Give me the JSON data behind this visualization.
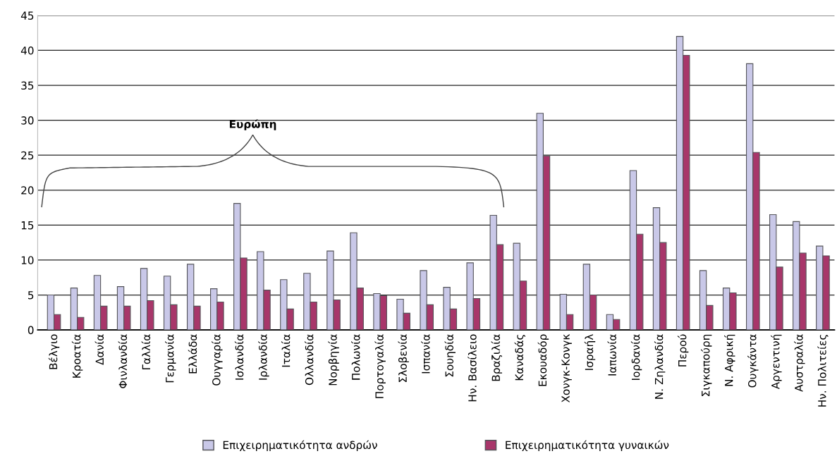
{
  "chart_data": {
    "type": "bar",
    "categories": [
      "Βέλγιο",
      "Κροατία",
      "Δανία",
      "Φινλανδία",
      "Γαλλία",
      "Γερμανία",
      "Ελλάδα",
      "Ουγγαρία",
      "Ισλανδία",
      "Ιρλανδία",
      "Ιταλία",
      "Ολλανδία",
      "Νορβηγία",
      "Πολωνία",
      "Πορτογαλία",
      "Σλοβενία",
      "Ισπανία",
      "Σουηδία",
      "Ην. Βασίλειο",
      "Βραζιλία",
      "Καναδάς",
      "Εκουαδόρ",
      "Χονγκ-Κονγκ",
      "Ισραήλ",
      "Ιαπωνία",
      "Ιορδανία",
      "Ν. Ζηλανδία",
      "Περού",
      "Σιγκαπούρη",
      "Ν. Αφρική",
      "Ουγκάντα",
      "Αργεντινή",
      "Αυστραλία",
      "Ην. Πολιτείες"
    ],
    "series": [
      {
        "name": "Επιχειρηματικότητα ανδρών",
        "color": "#c9c8e8",
        "values": [
          5.0,
          6.0,
          7.8,
          6.2,
          8.8,
          7.7,
          9.4,
          5.9,
          18.1,
          11.2,
          7.2,
          8.1,
          11.3,
          13.9,
          5.2,
          4.4,
          8.5,
          6.1,
          9.6,
          16.4,
          12.4,
          31.0,
          5.1,
          9.4,
          2.2,
          22.8,
          17.5,
          42.0,
          8.5,
          6.0,
          38.1,
          16.5,
          15.5,
          12.0
        ]
      },
      {
        "name": "Επιχειρηματικότητα γυναικών",
        "color": "#a8366a",
        "values": [
          2.2,
          1.8,
          3.4,
          3.4,
          4.2,
          3.6,
          3.4,
          4.0,
          10.3,
          5.7,
          3.0,
          4.0,
          4.3,
          6.0,
          4.9,
          2.4,
          3.6,
          3.0,
          4.5,
          12.2,
          7.0,
          24.9,
          2.2,
          5.0,
          1.5,
          13.7,
          12.5,
          39.3,
          3.5,
          5.3,
          25.4,
          9.0,
          11.0,
          10.6
        ]
      }
    ],
    "ylim": [
      0,
      45
    ],
    "yticks": [
      0,
      5,
      10,
      15,
      20,
      25,
      30,
      35,
      40,
      45
    ],
    "grid": "y",
    "legend": "bottom",
    "annotations": [
      "Ευρώπη"
    ]
  }
}
